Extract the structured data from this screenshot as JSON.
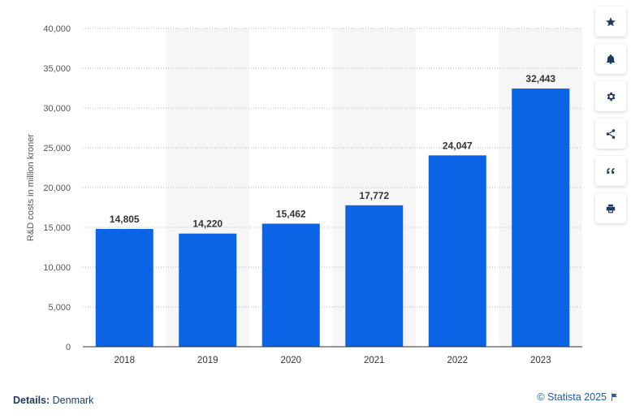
{
  "chart_data": {
    "type": "bar",
    "categories": [
      "2018",
      "2019",
      "2020",
      "2021",
      "2022",
      "2023"
    ],
    "values": [
      14805,
      14220,
      15462,
      17772,
      24047,
      32443
    ],
    "value_labels": [
      "14,805",
      "14,220",
      "15,462",
      "17,772",
      "24,047",
      "32,443"
    ],
    "title": "",
    "xlabel": "",
    "ylabel": "R&D costs in million kroner",
    "ylim": [
      0,
      40000
    ],
    "yticks": [
      0,
      5000,
      10000,
      15000,
      20000,
      25000,
      30000,
      35000,
      40000
    ],
    "ytick_labels": [
      "0",
      "5,000",
      "10,000",
      "15,000",
      "20,000",
      "25,000",
      "30,000",
      "35,000",
      "40,000"
    ],
    "grid": true,
    "bar_color": "#0b63e5"
  },
  "toolbar": {
    "icons": [
      "star-icon",
      "bell-icon",
      "gear-icon",
      "share-icon",
      "quote-icon",
      "print-icon"
    ]
  },
  "footer": {
    "details_key": "Details:",
    "details_value": "Denmark",
    "credit": "© Statista 2025"
  }
}
